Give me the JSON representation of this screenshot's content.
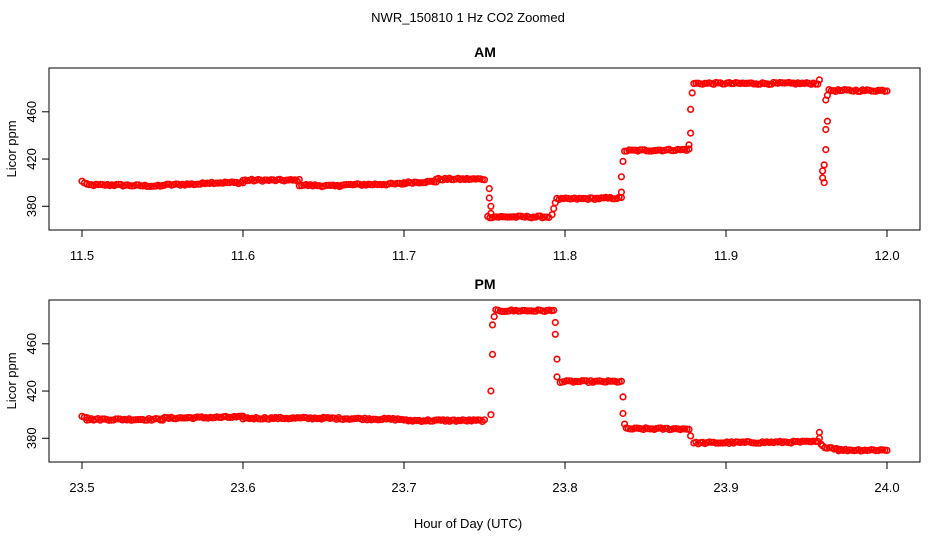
{
  "figure": {
    "main_title": "NWR_150810  1 Hz CO2 Zoomed",
    "xlabel": "Hour of Day (UTC)"
  },
  "chart_data": [
    {
      "type": "scatter",
      "title": "AM",
      "xlabel": "",
      "ylabel": "Licor ppm",
      "xlim": [
        11.5,
        12.0
      ],
      "ylim": [
        365,
        492
      ],
      "xticks": [
        11.5,
        11.6,
        11.7,
        11.8,
        11.9,
        12.0
      ],
      "xtick_labels": [
        "11.5",
        "11.6",
        "11.7",
        "11.8",
        "11.9",
        "12.0"
      ],
      "yticks": [
        380,
        420,
        460
      ],
      "ytick_labels": [
        "380",
        "420",
        "460"
      ],
      "grid": false,
      "marker": "open-circle",
      "color": "#ff0000",
      "series": [
        {
          "segments": [
            {
              "x": [
                11.5,
                11.503
              ],
              "y": [
                401,
                399
              ]
            },
            {
              "x": [
                11.503,
                11.52
              ],
              "y": [
                398,
                398
              ]
            },
            {
              "x": [
                11.52,
                11.55
              ],
              "y": [
                398,
                397
              ]
            },
            {
              "x": [
                11.55,
                11.575
              ],
              "y": [
                398,
                399
              ]
            },
            {
              "x": [
                11.575,
                11.6
              ],
              "y": [
                400,
                400
              ]
            },
            {
              "x": [
                11.6,
                11.635
              ],
              "y": [
                402,
                402
              ]
            },
            {
              "x": [
                11.635,
                11.66
              ],
              "y": [
                398,
                397
              ]
            },
            {
              "x": [
                11.66,
                11.7
              ],
              "y": [
                398,
                399
              ]
            },
            {
              "x": [
                11.7,
                11.72
              ],
              "y": [
                400,
                401
              ]
            },
            {
              "x": [
                11.72,
                11.75
              ],
              "y": [
                403,
                403
              ]
            },
            {
              "x": [
                11.752,
                11.79
              ],
              "y": [
                371,
                371
              ]
            },
            {
              "x": [
                11.795,
                11.835
              ],
              "y": [
                386,
                387
              ]
            },
            {
              "x": [
                11.837,
                11.877
              ],
              "y": [
                427,
                428
              ]
            },
            {
              "x": [
                11.88,
                11.957
              ],
              "y": [
                484,
                484
              ]
            },
            {
              "x": [
                11.964,
                12.0
              ],
              "y": [
                478,
                478
              ]
            }
          ],
          "points": [
            {
              "x": 11.753,
              "y": 395
            },
            {
              "x": 11.753,
              "y": 387
            },
            {
              "x": 11.754,
              "y": 380
            },
            {
              "x": 11.754,
              "y": 374
            },
            {
              "x": 11.792,
              "y": 373
            },
            {
              "x": 11.793,
              "y": 378
            },
            {
              "x": 11.794,
              "y": 383
            },
            {
              "x": 11.835,
              "y": 392
            },
            {
              "x": 11.835,
              "y": 405
            },
            {
              "x": 11.836,
              "y": 418
            },
            {
              "x": 11.877,
              "y": 432
            },
            {
              "x": 11.878,
              "y": 442
            },
            {
              "x": 11.878,
              "y": 462
            },
            {
              "x": 11.879,
              "y": 476
            },
            {
              "x": 11.958,
              "y": 487
            },
            {
              "x": 11.96,
              "y": 404
            },
            {
              "x": 11.96,
              "y": 410
            },
            {
              "x": 11.961,
              "y": 400
            },
            {
              "x": 11.961,
              "y": 415
            },
            {
              "x": 11.962,
              "y": 428
            },
            {
              "x": 11.962,
              "y": 445
            },
            {
              "x": 11.963,
              "y": 452
            },
            {
              "x": 11.962,
              "y": 470
            },
            {
              "x": 11.963,
              "y": 474
            }
          ]
        }
      ]
    },
    {
      "type": "scatter",
      "title": "PM",
      "xlabel": "",
      "ylabel": "Licor ppm",
      "xlim": [
        23.5,
        24.0
      ],
      "ylim": [
        365,
        492
      ],
      "xticks": [
        23.5,
        23.6,
        23.7,
        23.8,
        23.9,
        24.0
      ],
      "xtick_labels": [
        "23.5",
        "23.6",
        "23.7",
        "23.8",
        "23.9",
        "24.0"
      ],
      "yticks": [
        380,
        420,
        460
      ],
      "ytick_labels": [
        "380",
        "420",
        "460"
      ],
      "grid": false,
      "marker": "open-circle",
      "color": "#ff0000",
      "series": [
        {
          "segments": [
            {
              "x": [
                23.5,
                23.503
              ],
              "y": [
                399,
                398
              ]
            },
            {
              "x": [
                23.503,
                23.55
              ],
              "y": [
                396,
                396
              ]
            },
            {
              "x": [
                23.55,
                23.6
              ],
              "y": [
                397,
                398
              ]
            },
            {
              "x": [
                23.6,
                23.65
              ],
              "y": [
                397,
                397
              ]
            },
            {
              "x": [
                23.65,
                23.7
              ],
              "y": [
                397,
                396
              ]
            },
            {
              "x": [
                23.7,
                23.75
              ],
              "y": [
                395,
                395
              ]
            },
            {
              "x": [
                23.757,
                23.793
              ],
              "y": [
                488,
                488
              ]
            },
            {
              "x": [
                23.797,
                23.835
              ],
              "y": [
                428,
                428
              ]
            },
            {
              "x": [
                23.838,
                23.877
              ],
              "y": [
                388,
                388
              ]
            },
            {
              "x": [
                23.88,
                23.957
              ],
              "y": [
                376,
                377
              ]
            },
            {
              "x": [
                23.96,
                23.97
              ],
              "y": [
                373,
                371
              ]
            },
            {
              "x": [
                23.97,
                24.0
              ],
              "y": [
                370,
                370
              ]
            }
          ],
          "points": [
            {
              "x": 23.754,
              "y": 400
            },
            {
              "x": 23.754,
              "y": 420
            },
            {
              "x": 23.755,
              "y": 451
            },
            {
              "x": 23.755,
              "y": 476
            },
            {
              "x": 23.756,
              "y": 483
            },
            {
              "x": 23.794,
              "y": 478
            },
            {
              "x": 23.794,
              "y": 468
            },
            {
              "x": 23.795,
              "y": 447
            },
            {
              "x": 23.795,
              "y": 432
            },
            {
              "x": 23.836,
              "y": 415
            },
            {
              "x": 23.836,
              "y": 401
            },
            {
              "x": 23.837,
              "y": 392
            },
            {
              "x": 23.878,
              "y": 382
            },
            {
              "x": 23.958,
              "y": 385
            },
            {
              "x": 23.958,
              "y": 380
            },
            {
              "x": 23.959,
              "y": 375
            }
          ]
        }
      ]
    }
  ]
}
